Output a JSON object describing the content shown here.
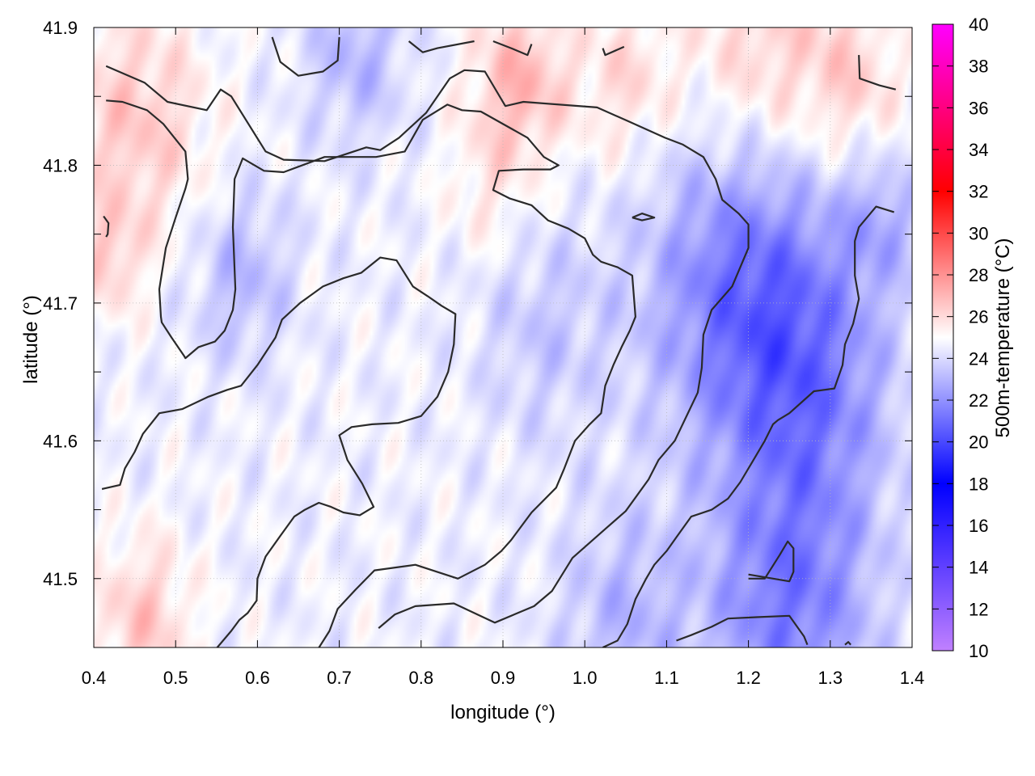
{
  "chart_data": {
    "type": "heatmap",
    "title": "",
    "xlabel": "longitude (°)",
    "ylabel": "latitude (°)",
    "colorbar_label": "500m-temperature (°C)",
    "xlim": [
      0.4,
      1.4
    ],
    "ylim": [
      41.45,
      41.9
    ],
    "x_ticks": [
      "0.4",
      "0.5",
      "0.6",
      "0.7",
      "0.8",
      "0.9",
      "1.0",
      "1.1",
      "1.2",
      "1.3",
      "1.4"
    ],
    "y_ticks": [
      "41.5",
      "41.6",
      "41.7",
      "41.8",
      "41.9"
    ],
    "colorbar_range": [
      10,
      40
    ],
    "colorbar_ticks": [
      "10",
      "12",
      "14",
      "16",
      "18",
      "20",
      "22",
      "24",
      "26",
      "28",
      "30",
      "32",
      "34",
      "36",
      "38",
      "40"
    ],
    "colormap": [
      {
        "value": 10,
        "color": "#c080ff"
      },
      {
        "value": 18,
        "color": "#0000ff"
      },
      {
        "value": 25,
        "color": "#ffffff"
      },
      {
        "value": 32,
        "color": "#ff0000"
      },
      {
        "value": 40,
        "color": "#ff00ff"
      }
    ],
    "grid": true,
    "field_features": [
      {
        "lon": 0.45,
        "lat": 41.83,
        "temp": 26.5,
        "radius_deg": 0.09
      },
      {
        "lon": 0.42,
        "lat": 41.73,
        "temp": 26.0,
        "radius_deg": 0.04
      },
      {
        "lon": 0.92,
        "lat": 41.86,
        "temp": 27.0,
        "radius_deg": 0.06
      },
      {
        "lon": 1.05,
        "lat": 41.86,
        "temp": 26.0,
        "radius_deg": 0.06
      },
      {
        "lon": 1.22,
        "lat": 41.88,
        "temp": 26.5,
        "radius_deg": 0.1
      },
      {
        "lon": 1.33,
        "lat": 41.86,
        "temp": 26.0,
        "radius_deg": 0.06
      },
      {
        "lon": 0.46,
        "lat": 41.47,
        "temp": 26.5,
        "radius_deg": 0.06
      },
      {
        "lon": 0.88,
        "lat": 41.78,
        "temp": 25.5,
        "radius_deg": 0.05
      },
      {
        "lon": 1.2,
        "lat": 41.71,
        "temp": 21.0,
        "radius_deg": 0.12
      },
      {
        "lon": 1.28,
        "lat": 41.63,
        "temp": 22.5,
        "radius_deg": 0.1
      },
      {
        "lon": 1.25,
        "lat": 41.48,
        "temp": 21.5,
        "radius_deg": 0.1
      },
      {
        "lon": 1.05,
        "lat": 41.47,
        "temp": 23.0,
        "radius_deg": 0.08
      },
      {
        "lon": 0.58,
        "lat": 41.72,
        "temp": 23.0,
        "radius_deg": 0.06
      },
      {
        "lon": 0.72,
        "lat": 41.88,
        "temp": 23.0,
        "radius_deg": 0.06
      },
      {
        "lon": 0.95,
        "lat": 41.68,
        "temp": 23.5,
        "radius_deg": 0.08
      },
      {
        "lon": 1.36,
        "lat": 41.76,
        "temp": 23.0,
        "radius_deg": 0.05
      }
    ],
    "contours": [
      [
        [
          0.415,
          41.872
        ],
        [
          0.462,
          41.86
        ],
        [
          0.49,
          41.846
        ],
        [
          0.538,
          41.84
        ],
        [
          0.555,
          41.855
        ],
        [
          0.568,
          41.85
        ],
        [
          0.61,
          41.81
        ],
        [
          0.632,
          41.804
        ],
        [
          0.682,
          41.803
        ],
        [
          0.733,
          41.813
        ],
        [
          0.75,
          41.811
        ],
        [
          0.773,
          41.82
        ],
        [
          0.806,
          41.838
        ],
        [
          0.835,
          41.863
        ],
        [
          0.853,
          41.869
        ],
        [
          0.878,
          41.868
        ],
        [
          0.903,
          41.843
        ],
        [
          0.925,
          41.846
        ],
        [
          1.015,
          41.842
        ],
        [
          1.053,
          41.832
        ],
        [
          1.098,
          41.82
        ],
        [
          1.12,
          41.815
        ],
        [
          1.145,
          41.806
        ],
        [
          1.16,
          41.79
        ],
        [
          1.168,
          41.775
        ],
        [
          1.188,
          41.765
        ],
        [
          1.2,
          41.757
        ],
        [
          1.2,
          41.74
        ],
        [
          1.18,
          41.712
        ],
        [
          1.155,
          41.695
        ],
        [
          1.145,
          41.677
        ],
        [
          1.143,
          41.653
        ],
        [
          1.138,
          41.635
        ],
        [
          1.11,
          41.6
        ],
        [
          1.09,
          41.586
        ],
        [
          1.078,
          41.572
        ],
        [
          1.05,
          41.549
        ],
        [
          1.025,
          41.536
        ],
        [
          0.985,
          41.515
        ],
        [
          0.96,
          41.491
        ],
        [
          0.938,
          41.48
        ],
        [
          0.89,
          41.468
        ],
        [
          0.84,
          41.482
        ],
        [
          0.793,
          41.48
        ],
        [
          0.768,
          41.474
        ],
        [
          0.748,
          41.464
        ]
      ],
      [
        [
          0.415,
          41.847
        ],
        [
          0.435,
          41.846
        ],
        [
          0.465,
          41.84
        ],
        [
          0.485,
          41.83
        ],
        [
          0.512,
          41.81
        ],
        [
          0.515,
          41.79
        ],
        [
          0.512,
          41.783
        ],
        [
          0.5,
          41.762
        ],
        [
          0.488,
          41.74
        ],
        [
          0.48,
          41.71
        ],
        [
          0.482,
          41.69
        ],
        [
          0.483,
          41.686
        ],
        [
          0.495,
          41.675
        ],
        [
          0.51,
          41.662
        ],
        [
          0.512,
          41.66
        ],
        [
          0.528,
          41.668
        ],
        [
          0.548,
          41.672
        ],
        [
          0.56,
          41.68
        ],
        [
          0.57,
          41.695
        ],
        [
          0.573,
          41.71
        ],
        [
          0.57,
          41.755
        ],
        [
          0.572,
          41.79
        ],
        [
          0.582,
          41.805
        ],
        [
          0.608,
          41.796
        ],
        [
          0.632,
          41.795
        ],
        [
          0.682,
          41.806
        ],
        [
          0.745,
          41.806
        ],
        [
          0.78,
          41.81
        ],
        [
          0.802,
          41.833
        ],
        [
          0.832,
          41.844
        ],
        [
          0.85,
          41.84
        ],
        [
          0.873,
          41.839
        ],
        [
          0.93,
          41.82
        ],
        [
          0.95,
          41.806
        ],
        [
          0.968,
          41.8
        ],
        [
          0.958,
          41.797
        ],
        [
          0.925,
          41.797
        ],
        [
          0.895,
          41.796
        ],
        [
          0.888,
          41.782
        ],
        [
          0.908,
          41.776
        ],
        [
          0.935,
          41.771
        ],
        [
          0.955,
          41.76
        ],
        [
          0.98,
          41.754
        ],
        [
          1.0,
          41.747
        ],
        [
          1.01,
          41.735
        ],
        [
          1.02,
          41.73
        ],
        [
          1.04,
          41.726
        ],
        [
          1.058,
          41.72
        ],
        [
          1.062,
          41.69
        ],
        [
          1.055,
          41.68
        ],
        [
          1.045,
          41.668
        ],
        [
          1.035,
          41.655
        ],
        [
          1.025,
          41.64
        ],
        [
          1.02,
          41.62
        ],
        [
          1.006,
          41.612
        ],
        [
          0.988,
          41.6
        ],
        [
          0.975,
          41.58
        ],
        [
          0.965,
          41.566
        ],
        [
          0.935,
          41.548
        ],
        [
          0.91,
          41.528
        ],
        [
          0.898,
          41.52
        ],
        [
          0.878,
          41.51
        ],
        [
          0.845,
          41.5
        ],
        [
          0.793,
          41.51
        ],
        [
          0.743,
          41.506
        ],
        [
          0.72,
          41.492
        ],
        [
          0.698,
          41.478
        ],
        [
          0.688,
          41.462
        ],
        [
          0.672,
          41.447
        ],
        [
          0.655,
          41.433
        ]
      ],
      [
        [
          0.41,
          41.565
        ],
        [
          0.432,
          41.568
        ],
        [
          0.438,
          41.58
        ],
        [
          0.45,
          41.592
        ],
        [
          0.46,
          41.605
        ],
        [
          0.48,
          41.62
        ],
        [
          0.508,
          41.623
        ],
        [
          0.54,
          41.632
        ],
        [
          0.563,
          41.637
        ],
        [
          0.58,
          41.64
        ],
        [
          0.6,
          41.655
        ],
        [
          0.622,
          41.675
        ],
        [
          0.63,
          41.688
        ],
        [
          0.652,
          41.7
        ],
        [
          0.68,
          41.712
        ],
        [
          0.705,
          41.718
        ],
        [
          0.727,
          41.722
        ],
        [
          0.75,
          41.733
        ],
        [
          0.77,
          41.731
        ],
        [
          0.79,
          41.712
        ],
        [
          0.808,
          41.705
        ],
        [
          0.825,
          41.698
        ],
        [
          0.842,
          41.692
        ],
        [
          0.84,
          41.67
        ],
        [
          0.833,
          41.65
        ],
        [
          0.82,
          41.632
        ],
        [
          0.8,
          41.618
        ],
        [
          0.772,
          41.613
        ],
        [
          0.74,
          41.612
        ],
        [
          0.715,
          41.61
        ],
        [
          0.7,
          41.604
        ],
        [
          0.71,
          41.586
        ],
        [
          0.728,
          41.569
        ],
        [
          0.742,
          41.552
        ],
        [
          0.725,
          41.546
        ],
        [
          0.705,
          41.548
        ],
        [
          0.69,
          41.552
        ],
        [
          0.675,
          41.555
        ],
        [
          0.658,
          41.55
        ],
        [
          0.645,
          41.545
        ],
        [
          0.628,
          41.531
        ],
        [
          0.61,
          41.516
        ],
        [
          0.6,
          41.5
        ],
        [
          0.599,
          41.484
        ],
        [
          0.588,
          41.475
        ],
        [
          0.578,
          41.47
        ],
        [
          0.568,
          41.462
        ],
        [
          0.548,
          41.448
        ],
        [
          0.524,
          41.441
        ]
      ],
      [
        [
          0.618,
          41.893
        ],
        [
          0.628,
          41.875
        ],
        [
          0.65,
          41.865
        ],
        [
          0.68,
          41.868
        ],
        [
          0.698,
          41.876
        ],
        [
          0.7,
          41.893
        ]
      ],
      [
        [
          0.785,
          41.89
        ],
        [
          0.802,
          41.882
        ],
        [
          0.82,
          41.885
        ],
        [
          0.865,
          41.89
        ]
      ],
      [
        [
          0.888,
          41.89
        ],
        [
          0.91,
          41.885
        ],
        [
          0.93,
          41.88
        ],
        [
          0.935,
          41.888
        ]
      ],
      [
        [
          1.022,
          41.885
        ],
        [
          1.025,
          41.88
        ],
        [
          1.048,
          41.886
        ]
      ],
      [
        [
          0.412,
          41.763
        ],
        [
          0.418,
          41.758
        ],
        [
          0.417,
          41.75
        ],
        [
          0.415,
          41.748
        ]
      ],
      [
        [
          1.058,
          41.762
        ],
        [
          1.07,
          41.765
        ],
        [
          1.085,
          41.762
        ],
        [
          1.07,
          41.76
        ],
        [
          1.058,
          41.762
        ]
      ],
      [
        [
          1.335,
          41.88
        ],
        [
          1.336,
          41.863
        ],
        [
          1.36,
          41.858
        ],
        [
          1.38,
          41.855
        ]
      ],
      [
        [
          1.378,
          41.766
        ],
        [
          1.356,
          41.77
        ],
        [
          1.335,
          41.755
        ],
        [
          1.33,
          41.745
        ],
        [
          1.33,
          41.72
        ],
        [
          1.335,
          41.703
        ],
        [
          1.328,
          41.685
        ],
        [
          1.318,
          41.67
        ],
        [
          1.315,
          41.655
        ],
        [
          1.305,
          41.638
        ],
        [
          1.28,
          41.636
        ],
        [
          1.25,
          41.62
        ],
        [
          1.236,
          41.615
        ],
        [
          1.23,
          41.612
        ],
        [
          1.22,
          41.6
        ],
        [
          1.205,
          41.585
        ],
        [
          1.19,
          41.57
        ],
        [
          1.175,
          41.558
        ],
        [
          1.155,
          41.55
        ],
        [
          1.13,
          41.545
        ],
        [
          1.112,
          41.53
        ],
        [
          1.1,
          41.52
        ],
        [
          1.085,
          41.51
        ],
        [
          1.075,
          41.5
        ],
        [
          1.062,
          41.485
        ],
        [
          1.052,
          41.467
        ],
        [
          1.04,
          41.455
        ],
        [
          1.022,
          41.45
        ]
      ],
      [
        [
          1.2,
          41.5
        ],
        [
          1.22,
          41.5
        ],
        [
          1.238,
          41.517
        ],
        [
          1.248,
          41.527
        ],
        [
          1.255,
          41.522
        ],
        [
          1.255,
          41.505
        ],
        [
          1.25,
          41.498
        ],
        [
          1.2,
          41.503
        ]
      ],
      [
        [
          1.112,
          41.455
        ],
        [
          1.13,
          41.459
        ],
        [
          1.155,
          41.465
        ],
        [
          1.175,
          41.471
        ],
        [
          1.21,
          41.472
        ],
        [
          1.25,
          41.473
        ],
        [
          1.268,
          41.458
        ],
        [
          1.272,
          41.452
        ]
      ],
      [
        [
          1.318,
          41.452
        ],
        [
          1.322,
          41.454
        ],
        [
          1.325,
          41.452
        ]
      ]
    ]
  }
}
